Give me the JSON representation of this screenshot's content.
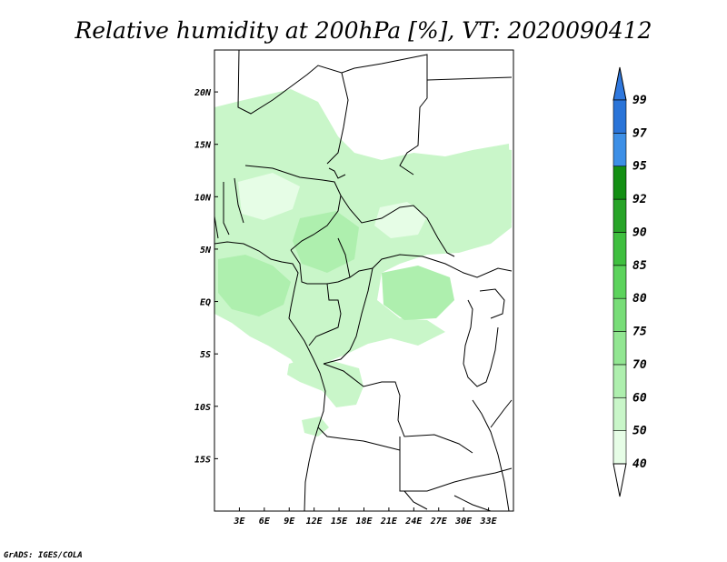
{
  "title": "Relative humidity at 200hPa [%], VT: 2020090412",
  "credit": "GrADS: IGES/COLA",
  "map": {
    "lon_range": [
      0,
      36
    ],
    "lat_range": [
      -20,
      24
    ],
    "lon_ticks": [
      {
        "value": 3,
        "label": "3E"
      },
      {
        "value": 6,
        "label": "6E"
      },
      {
        "value": 9,
        "label": "9E"
      },
      {
        "value": 12,
        "label": "12E"
      },
      {
        "value": 15,
        "label": "15E"
      },
      {
        "value": 18,
        "label": "18E"
      },
      {
        "value": 21,
        "label": "21E"
      },
      {
        "value": 24,
        "label": "24E"
      },
      {
        "value": 27,
        "label": "27E"
      },
      {
        "value": 30,
        "label": "30E"
      },
      {
        "value": 33,
        "label": "33E"
      }
    ],
    "lat_ticks": [
      {
        "value": 20,
        "label": "20N"
      },
      {
        "value": 15,
        "label": "15N"
      },
      {
        "value": 10,
        "label": "10N"
      },
      {
        "value": 5,
        "label": "5N"
      },
      {
        "value": 0,
        "label": "EQ"
      },
      {
        "value": -5,
        "label": "5S"
      },
      {
        "value": -10,
        "label": "10S"
      },
      {
        "value": -15,
        "label": "15S"
      }
    ]
  },
  "colorbar": {
    "labels": [
      "40",
      "50",
      "60",
      "70",
      "75",
      "80",
      "85",
      "90",
      "92",
      "95",
      "97",
      "99"
    ],
    "colors": [
      "#e6fde6",
      "#c9f6c9",
      "#aeefae",
      "#92e692",
      "#78dd78",
      "#5cd35c",
      "#3fbf3f",
      "#28a428",
      "#138f13",
      "#3d8fe6",
      "#2a74d8",
      "#1b55c4"
    ],
    "over_color": "#2f78de"
  }
}
